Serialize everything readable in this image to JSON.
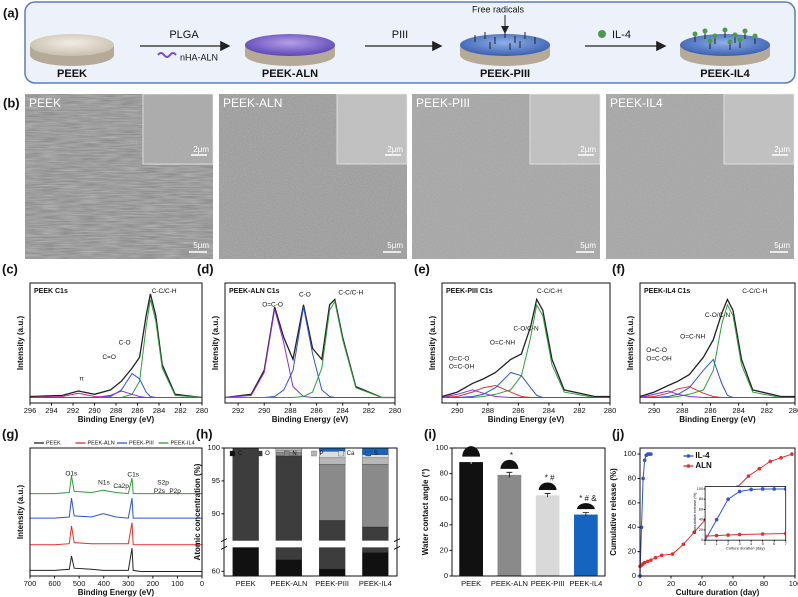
{
  "schematic": {
    "panel": "(a)",
    "steps": [
      "PEEK",
      "PEEK-ALN",
      "PEEK-PIII",
      "PEEK-IL4"
    ],
    "reagent_1": "PLGA",
    "reagent_1_sub": "nHA-ALN",
    "reagent_2": "PIII",
    "reagent_3": "IL-4",
    "callout": "Free radicals"
  },
  "sem": {
    "panel": "(b)",
    "images": [
      {
        "title": "PEEK",
        "inset_scale": "2μm",
        "scale": "5μm"
      },
      {
        "title": "PEEK-ALN",
        "inset_scale": "2μm",
        "scale": "5μm"
      },
      {
        "title": "PEEK-PIII",
        "inset_scale": "2μm",
        "scale": "5μm"
      },
      {
        "title": "PEEK-IL4",
        "inset_scale": "2μm",
        "scale": "5μm"
      }
    ]
  },
  "chart_data": [
    {
      "type": "line",
      "panel": "(c)",
      "title": "PEEK  C1s",
      "xlabel": "Binding Energy (eV)",
      "ylabel": "Intensity (a.u.)",
      "xlim": [
        296,
        280
      ],
      "xticks": [
        296,
        294,
        292,
        290,
        288,
        286,
        284,
        282,
        280
      ],
      "ylim": [
        0,
        110
      ],
      "x": [
        296,
        293,
        291.5,
        290,
        288.5,
        287.5,
        286.5,
        285.8,
        285.2,
        284.8,
        284.3,
        283.7,
        282.5,
        280
      ],
      "series": [
        {
          "color": "#222222",
          "values": [
            6,
            7,
            11,
            8,
            12,
            20,
            32,
            42,
            80,
            100,
            80,
            35,
            8,
            5
          ]
        },
        {
          "color": "#2e9e3a",
          "values": [
            5,
            5,
            5,
            5,
            5,
            5,
            8,
            20,
            70,
            95,
            75,
            32,
            7,
            5
          ]
        },
        {
          "color": "#2f54d0",
          "values": [
            5,
            5,
            5,
            5,
            6,
            12,
            27,
            22,
            10,
            6,
            5,
            5,
            5,
            5
          ]
        },
        {
          "color": "#8a2be2",
          "values": [
            5,
            5,
            5,
            5,
            7,
            11,
            8,
            6,
            5,
            5,
            5,
            5,
            5,
            5
          ]
        },
        {
          "color": "#d02090",
          "values": [
            5,
            6,
            9,
            6,
            5,
            5,
            5,
            5,
            5,
            5,
            5,
            5,
            5,
            5
          ]
        }
      ],
      "annotations": [
        "C-C/C-H",
        "C-O",
        "C=O",
        "π"
      ]
    },
    {
      "type": "line",
      "panel": "(d)",
      "title": "PEEK-ALN  C1s",
      "xlabel": "Binding Energy (eV)",
      "ylabel": "Intensity (a.u.)",
      "xlim": [
        293,
        280
      ],
      "xticks": [
        292,
        290,
        288,
        286,
        284,
        282,
        280
      ],
      "ylim": [
        0,
        110
      ],
      "x": [
        293,
        291,
        290,
        289.2,
        288.5,
        287.8,
        287,
        286.3,
        285.6,
        285,
        284.6,
        284,
        283,
        281,
        280
      ],
      "series": [
        {
          "color": "#222222",
          "values": [
            5,
            8,
            30,
            88,
            60,
            40,
            90,
            50,
            40,
            90,
            95,
            60,
            15,
            5,
            5
          ]
        },
        {
          "color": "#8a2be2",
          "values": [
            5,
            7,
            28,
            86,
            55,
            15,
            6,
            5,
            5,
            5,
            5,
            5,
            5,
            5,
            5
          ]
        },
        {
          "color": "#2f54d0",
          "values": [
            5,
            5,
            5,
            6,
            12,
            30,
            88,
            45,
            12,
            6,
            5,
            5,
            5,
            5,
            5
          ]
        },
        {
          "color": "#2e9e3a",
          "values": [
            5,
            5,
            5,
            5,
            5,
            5,
            6,
            10,
            32,
            85,
            93,
            58,
            14,
            5,
            5
          ]
        }
      ],
      "annotations": [
        "O=C-O",
        "C-O",
        "C-C/C-H"
      ]
    },
    {
      "type": "line",
      "panel": "(e)",
      "title": "PEEK-PIII  C1s",
      "xlabel": "Binding Energy (eV)",
      "ylabel": "Intensity (a.u.)",
      "xlim": [
        291,
        280
      ],
      "xticks": [
        290,
        288,
        286,
        284,
        282,
        280
      ],
      "ylim": [
        0,
        110
      ],
      "x": [
        291,
        290,
        289,
        288.3,
        287.5,
        286.5,
        285.8,
        285.2,
        284.8,
        284.4,
        283.8,
        283,
        281,
        280
      ],
      "series": [
        {
          "color": "#222222",
          "values": [
            6,
            10,
            18,
            22,
            28,
            40,
            45,
            70,
            95,
            85,
            40,
            12,
            6,
            6
          ]
        },
        {
          "color": "#2e9e3a",
          "values": [
            5,
            5,
            5,
            6,
            8,
            12,
            25,
            60,
            90,
            80,
            35,
            10,
            5,
            5
          ]
        },
        {
          "color": "#2f54d0",
          "values": [
            5,
            5,
            6,
            8,
            14,
            28,
            25,
            14,
            7,
            5,
            5,
            5,
            5,
            5
          ]
        },
        {
          "color": "#e03030",
          "values": [
            5,
            6,
            10,
            14,
            16,
            10,
            6,
            5,
            5,
            5,
            5,
            5,
            5,
            5
          ]
        },
        {
          "color": "#8a2be2",
          "values": [
            5,
            8,
            12,
            9,
            6,
            5,
            5,
            5,
            5,
            5,
            5,
            5,
            5,
            5
          ]
        }
      ],
      "annotations": [
        "C-C/C-H",
        "C-O/C-N",
        "O=C-NH",
        "O=C-O",
        "O=C-OH"
      ]
    },
    {
      "type": "line",
      "panel": "(f)",
      "title": "PEEK-IL4  C1s",
      "xlabel": "Binding Energy (eV)",
      "ylabel": "Intensity (a.u.)",
      "xlim": [
        291,
        280
      ],
      "xticks": [
        290,
        288,
        286,
        284,
        282,
        280
      ],
      "ylim": [
        0,
        110
      ],
      "x": [
        291,
        290,
        289,
        288.3,
        287.5,
        286.5,
        285.8,
        285.2,
        284.8,
        284.4,
        283.8,
        283,
        281,
        280
      ],
      "series": [
        {
          "color": "#222222",
          "values": [
            6,
            10,
            16,
            20,
            26,
            42,
            58,
            82,
            95,
            85,
            40,
            12,
            6,
            6
          ]
        },
        {
          "color": "#2e9e3a",
          "values": [
            5,
            5,
            5,
            6,
            8,
            12,
            30,
            72,
            90,
            80,
            35,
            10,
            5,
            5
          ]
        },
        {
          "color": "#2f54d0",
          "values": [
            5,
            5,
            6,
            8,
            14,
            30,
            40,
            18,
            7,
            5,
            5,
            5,
            5,
            5
          ]
        },
        {
          "color": "#e03030",
          "values": [
            5,
            6,
            9,
            13,
            15,
            9,
            6,
            5,
            5,
            5,
            5,
            5,
            5,
            5
          ]
        },
        {
          "color": "#8a2be2",
          "values": [
            5,
            8,
            11,
            8,
            6,
            5,
            5,
            5,
            5,
            5,
            5,
            5,
            5,
            5
          ]
        }
      ],
      "annotations": [
        "C-C/C-H",
        "C-O/C-N",
        "O=C-NH",
        "O=C-O",
        "O=C-OH"
      ]
    },
    {
      "type": "line",
      "panel": "(g)",
      "xlabel": "Binding Energy (eV)",
      "ylabel": "Intensity (a.u.)",
      "legend": "top",
      "xlim": [
        700,
        0
      ],
      "xticks": [
        700,
        600,
        500,
        400,
        300,
        200,
        100,
        0
      ],
      "ylim": [
        0,
        115
      ],
      "x": [
        700,
        600,
        540,
        531,
        520,
        450,
        402,
        350,
        300,
        285,
        280,
        250,
        200,
        150,
        100,
        0
      ],
      "series": [
        {
          "name": "PEEK",
          "color": "#222222",
          "values": [
            5,
            5,
            6,
            18,
            7,
            6,
            5,
            5,
            5,
            25,
            5,
            4,
            4,
            4,
            4,
            4
          ]
        },
        {
          "name": "PEEK-ALN",
          "color": "#e03030",
          "values": [
            28,
            28,
            29,
            45,
            30,
            29,
            29,
            29,
            29,
            48,
            28,
            28,
            28,
            28,
            28,
            28
          ]
        },
        {
          "name": "PEEK-PIII",
          "color": "#2f54d0",
          "values": [
            52,
            52,
            53,
            70,
            54,
            53,
            56,
            53,
            52,
            70,
            52,
            52,
            52,
            52,
            52,
            52
          ]
        },
        {
          "name": "PEEK-IL4",
          "color": "#2e9e3a",
          "values": [
            74,
            74,
            75,
            90,
            76,
            75,
            77,
            75,
            74,
            88,
            74,
            74,
            74,
            74,
            74,
            74
          ]
        }
      ],
      "annotations": [
        "O1s",
        "N1s",
        "Ca2p",
        "C1s",
        "S2p",
        "P2s",
        "P2p"
      ]
    },
    {
      "type": "stacked_bar",
      "panel": "(h)",
      "ylabel": "Atomic concentration (%)",
      "legend": "top",
      "categories": [
        "PEEK",
        "PEEK-ALN",
        "PEEK-PIII",
        "PEEK-IL4"
      ],
      "ylim": [
        59,
        100
      ],
      "axis_break": [
        65,
        86
      ],
      "yticks": [
        60,
        90,
        95,
        100
      ],
      "series": [
        {
          "name": "C",
          "color": "#111111",
          "values": [
            85.5,
            62.5,
            60.5,
            64
          ]
        },
        {
          "name": "O",
          "color": "#3d3d3d",
          "values": [
            14.5,
            36.3,
            28.5,
            24
          ]
        },
        {
          "name": "N",
          "color": "#8a8a8a",
          "values": [
            0,
            0.5,
            8.5,
            9.5
          ]
        },
        {
          "name": "P",
          "color": "#b8b8b8",
          "values": [
            0,
            0.4,
            1,
            1
          ]
        },
        {
          "name": "Ca",
          "color": "#dedede",
          "values": [
            0,
            0.3,
            1,
            0.5
          ]
        },
        {
          "name": "S",
          "color": "#1565c0",
          "values": [
            0,
            0,
            0.5,
            1
          ]
        }
      ]
    },
    {
      "type": "bar",
      "panel": "(i)",
      "ylabel": "Water contact angle (°)",
      "categories": [
        "PEEK",
        "PEEK-ALN",
        "PEEK-PIII",
        "PEEK-IL4"
      ],
      "values": [
        89,
        79,
        63,
        48
      ],
      "errors": [
        1.5,
        2,
        1.5,
        1.5
      ],
      "colors": [
        "#111111",
        "#8a8a8a",
        "#d9d9d9",
        "#1565c0"
      ],
      "significance": [
        null,
        "*",
        "* #",
        "* # &"
      ],
      "ylim": [
        0,
        100
      ],
      "yticks": [
        0,
        20,
        40,
        60,
        80,
        100
      ]
    },
    {
      "type": "line",
      "panel": "(j)",
      "xlabel": "Culture duration (day)",
      "ylabel": "Cumulative release (%)",
      "legend": "upper center",
      "markers": true,
      "xlim": [
        0,
        100
      ],
      "xticks": [
        0,
        20,
        40,
        60,
        80,
        100
      ],
      "ylim": [
        0,
        105
      ],
      "yticks": [
        0,
        20,
        40,
        60,
        80,
        100
      ],
      "series": [
        {
          "name": "IL-4",
          "color": "#2f54d0",
          "x": [
            0,
            1,
            2,
            3,
            4,
            5,
            6,
            7
          ],
          "values": [
            0,
            40,
            80,
            95,
            99,
            100,
            100,
            100
          ]
        },
        {
          "name": "ALN",
          "color": "#e03030",
          "x": [
            0,
            1,
            2,
            3,
            5,
            7,
            10,
            14,
            21,
            28,
            35,
            42,
            49,
            56,
            63,
            70,
            77,
            84,
            91,
            98
          ],
          "values": [
            8,
            9,
            10,
            11,
            12,
            13,
            15,
            17,
            18,
            26,
            36,
            46,
            55,
            64,
            73,
            82,
            88,
            94,
            97,
            100
          ]
        }
      ],
      "inset": {
        "xlabel": "Culture duration (day)",
        "ylabel": "Cumulative release (%)",
        "xlim": [
          0,
          7
        ],
        "xticks": [
          0,
          1,
          2,
          3,
          4,
          5,
          6,
          7
        ],
        "ylim": [
          0,
          105
        ],
        "yticks": [
          0,
          20,
          40,
          60,
          80,
          100
        ]
      }
    }
  ]
}
